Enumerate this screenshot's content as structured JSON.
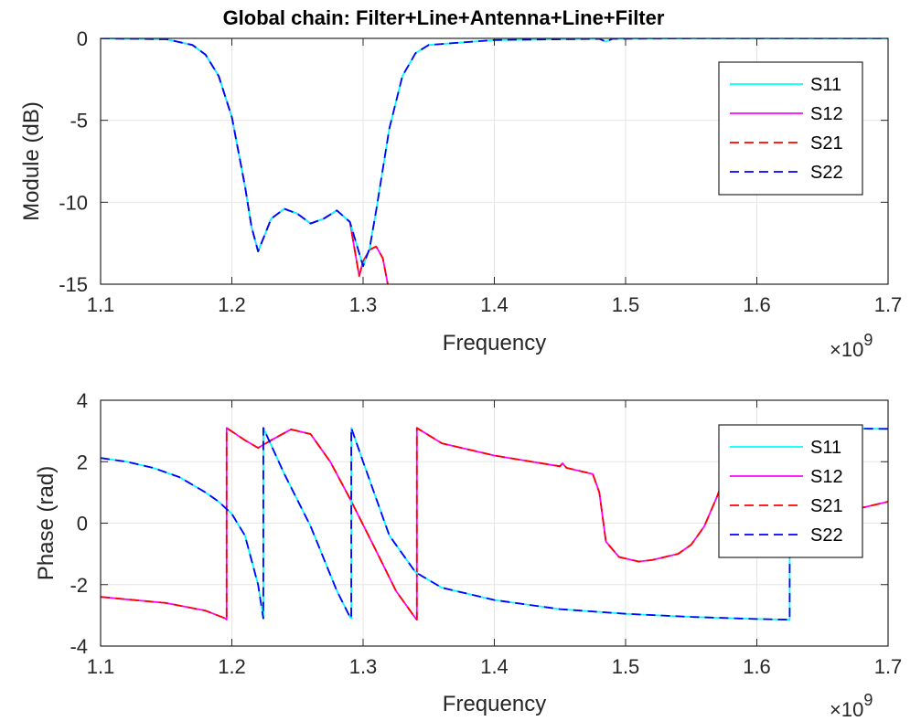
{
  "chart_data": [
    {
      "type": "line",
      "title": "Global chain: Filter+Line+Antenna+Line+Filter",
      "xlabel": "Frequency",
      "ylabel": "Module (dB)",
      "x_exponent": "×10^9",
      "xlim": [
        1100000000.0,
        1700000000.0
      ],
      "ylim": [
        -15,
        0
      ],
      "xticks": [
        1.1,
        1.2,
        1.3,
        1.4,
        1.5,
        1.6,
        1.7
      ],
      "xtick_labels": [
        "1.1",
        "1.2",
        "1.3",
        "1.4",
        "1.5",
        "1.6",
        "1.7"
      ],
      "yticks": [
        -15,
        -10,
        -5,
        0
      ],
      "ytick_labels": [
        "-15",
        "-10",
        "-5",
        "0"
      ],
      "x_scale": 1000000000.0,
      "grid": true,
      "legend_position": "top-right",
      "series": [
        {
          "name": "S11",
          "color": "#00ffff",
          "style": "solid",
          "x": [
            1.1,
            1.15,
            1.17,
            1.18,
            1.19,
            1.2,
            1.21,
            1.215,
            1.22,
            1.225,
            1.23,
            1.24,
            1.25,
            1.26,
            1.27,
            1.28,
            1.29,
            1.3,
            1.305,
            1.31,
            1.315,
            1.32,
            1.33,
            1.34,
            1.35,
            1.4,
            1.48,
            1.485,
            1.49,
            1.55,
            1.6,
            1.7
          ],
          "y": [
            0,
            -0.05,
            -0.4,
            -1.0,
            -2.3,
            -4.8,
            -9.0,
            -11.5,
            -13.0,
            -12.0,
            -11.0,
            -10.4,
            -10.7,
            -11.3,
            -11.0,
            -10.5,
            -11.2,
            -13.9,
            -12.8,
            -10.5,
            -8.0,
            -5.5,
            -2.3,
            -0.9,
            -0.4,
            -0.1,
            -0.03,
            -0.2,
            -0.03,
            0,
            0,
            0
          ]
        },
        {
          "name": "S12",
          "color": "#ff00ff",
          "style": "solid",
          "x": [
            1.1,
            1.15,
            1.17,
            1.18,
            1.19,
            1.2,
            1.21,
            1.215,
            1.22,
            1.225,
            1.23,
            1.24,
            1.25,
            1.26,
            1.27,
            1.28,
            1.29,
            1.297,
            1.3,
            1.305,
            1.31,
            1.315,
            1.32
          ],
          "y": [
            0,
            -0.05,
            -0.4,
            -1.0,
            -2.3,
            -4.8,
            -9.0,
            -11.5,
            -13.0,
            -12.0,
            -11.0,
            -10.4,
            -10.7,
            -11.3,
            -11.0,
            -10.5,
            -11.2,
            -14.5,
            -13.6,
            -12.9,
            -12.7,
            -13.4,
            -15.5
          ]
        },
        {
          "name": "S21",
          "color": "#ff0000",
          "style": "dashed",
          "x": [
            1.1,
            1.15,
            1.17,
            1.18,
            1.19,
            1.2,
            1.21,
            1.215,
            1.22,
            1.225,
            1.23,
            1.24,
            1.25,
            1.26,
            1.27,
            1.28,
            1.29,
            1.297,
            1.3,
            1.305,
            1.31,
            1.315,
            1.32
          ],
          "y": [
            0,
            -0.05,
            -0.4,
            -1.0,
            -2.3,
            -4.8,
            -9.0,
            -11.5,
            -13.0,
            -12.0,
            -11.0,
            -10.4,
            -10.7,
            -11.3,
            -11.0,
            -10.5,
            -11.2,
            -14.5,
            -13.6,
            -12.9,
            -12.7,
            -13.4,
            -15.5
          ]
        },
        {
          "name": "S22",
          "color": "#0000ff",
          "style": "dashed",
          "x": [
            1.1,
            1.15,
            1.17,
            1.18,
            1.19,
            1.2,
            1.21,
            1.215,
            1.22,
            1.225,
            1.23,
            1.24,
            1.25,
            1.26,
            1.27,
            1.28,
            1.29,
            1.3,
            1.305,
            1.31,
            1.315,
            1.32,
            1.33,
            1.34,
            1.35,
            1.4,
            1.48,
            1.485,
            1.49,
            1.55,
            1.6,
            1.7
          ],
          "y": [
            0,
            -0.05,
            -0.4,
            -1.0,
            -2.3,
            -4.8,
            -9.0,
            -11.5,
            -13.0,
            -12.0,
            -11.0,
            -10.4,
            -10.7,
            -11.3,
            -11.0,
            -10.5,
            -11.2,
            -13.9,
            -12.8,
            -10.5,
            -8.0,
            -5.5,
            -2.3,
            -0.9,
            -0.4,
            -0.1,
            -0.03,
            -0.2,
            -0.03,
            0,
            0,
            0
          ]
        }
      ]
    },
    {
      "type": "line",
      "title": "",
      "xlabel": "Frequency",
      "ylabel": "Phase (rad)",
      "x_exponent": "×10^9",
      "xlim": [
        1100000000.0,
        1700000000.0
      ],
      "ylim": [
        -4,
        4
      ],
      "xticks": [
        1.1,
        1.2,
        1.3,
        1.4,
        1.5,
        1.6,
        1.7
      ],
      "xtick_labels": [
        "1.1",
        "1.2",
        "1.3",
        "1.4",
        "1.5",
        "1.6",
        "1.7"
      ],
      "yticks": [
        -4,
        -2,
        0,
        2,
        4
      ],
      "ytick_labels": [
        "-4",
        "-2",
        "0",
        "2",
        "4"
      ],
      "x_scale": 1000000000.0,
      "grid": true,
      "legend_position": "top-right",
      "series": [
        {
          "name": "S11",
          "color": "#00ffff",
          "style": "solid",
          "x": [
            1.1,
            1.12,
            1.14,
            1.16,
            1.18,
            1.19,
            1.2,
            1.21,
            1.22,
            1.224,
            1.224,
            1.24,
            1.26,
            1.28,
            1.29,
            1.291,
            1.291,
            1.3,
            1.32,
            1.34,
            1.36,
            1.4,
            1.45,
            1.5,
            1.55,
            1.6,
            1.625,
            1.625,
            1.65,
            1.7
          ],
          "y": [
            2.12,
            2.0,
            1.8,
            1.5,
            1.0,
            0.7,
            0.3,
            -0.4,
            -2.0,
            -3.1,
            3.1,
            1.6,
            -0.1,
            -2.2,
            -3.05,
            -3.1,
            3.1,
            2.0,
            -0.4,
            -1.6,
            -2.1,
            -2.5,
            -2.8,
            -2.95,
            -3.05,
            -3.12,
            -3.14,
            3.1,
            3.08,
            3.07
          ]
        },
        {
          "name": "S12",
          "color": "#ff00ff",
          "style": "solid",
          "x": [
            1.1,
            1.15,
            1.18,
            1.195,
            1.196,
            1.196,
            1.21,
            1.22,
            1.23,
            1.245,
            1.26,
            1.275,
            1.29,
            1.31,
            1.325,
            1.34,
            1.341,
            1.341,
            1.36,
            1.4,
            1.45,
            1.452,
            1.455,
            1.475,
            1.48,
            1.485,
            1.495,
            1.505,
            1.51,
            1.52,
            1.54,
            1.55,
            1.56,
            1.57,
            1.575,
            1.58,
            1.59,
            1.6,
            1.65,
            1.7
          ],
          "y": [
            -2.4,
            -2.6,
            -2.85,
            -3.1,
            -3.14,
            3.1,
            2.7,
            2.45,
            2.7,
            3.05,
            2.9,
            2.0,
            0.8,
            -0.9,
            -2.2,
            -3.1,
            -3.14,
            3.1,
            2.6,
            2.2,
            1.85,
            1.95,
            1.8,
            1.6,
            1.0,
            -0.6,
            -1.1,
            -1.2,
            -1.25,
            -1.2,
            -1.0,
            -0.7,
            -0.1,
            0.9,
            1.5,
            2.0,
            2.0,
            1.0,
            0.2,
            0.7
          ]
        },
        {
          "name": "S21",
          "color": "#ff0000",
          "style": "dashed",
          "x": [
            1.1,
            1.15,
            1.18,
            1.195,
            1.196,
            1.196,
            1.21,
            1.22,
            1.23,
            1.245,
            1.26,
            1.275,
            1.29,
            1.31,
            1.325,
            1.34,
            1.341,
            1.341,
            1.36,
            1.4,
            1.45,
            1.452,
            1.455,
            1.475,
            1.48,
            1.485,
            1.495,
            1.505,
            1.51,
            1.52,
            1.54,
            1.55,
            1.56,
            1.57,
            1.575,
            1.58,
            1.59,
            1.6,
            1.65,
            1.7
          ],
          "y": [
            -2.4,
            -2.6,
            -2.85,
            -3.1,
            -3.14,
            3.1,
            2.7,
            2.45,
            2.7,
            3.05,
            2.9,
            2.0,
            0.8,
            -0.9,
            -2.2,
            -3.1,
            -3.14,
            3.1,
            2.6,
            2.2,
            1.85,
            1.95,
            1.8,
            1.6,
            1.0,
            -0.6,
            -1.1,
            -1.2,
            -1.25,
            -1.2,
            -1.0,
            -0.7,
            -0.1,
            0.9,
            1.5,
            2.0,
            2.0,
            1.0,
            0.2,
            0.7
          ]
        },
        {
          "name": "S22",
          "color": "#0000ff",
          "style": "dashed",
          "x": [
            1.1,
            1.12,
            1.14,
            1.16,
            1.18,
            1.19,
            1.2,
            1.21,
            1.22,
            1.224,
            1.224,
            1.24,
            1.26,
            1.28,
            1.29,
            1.291,
            1.291,
            1.3,
            1.32,
            1.34,
            1.36,
            1.4,
            1.45,
            1.5,
            1.55,
            1.6,
            1.625,
            1.625,
            1.65,
            1.7
          ],
          "y": [
            2.12,
            2.0,
            1.8,
            1.5,
            1.0,
            0.7,
            0.3,
            -0.4,
            -2.0,
            -3.1,
            3.1,
            1.6,
            -0.1,
            -2.2,
            -3.05,
            -3.1,
            3.1,
            2.0,
            -0.4,
            -1.6,
            -2.1,
            -2.5,
            -2.8,
            -2.95,
            -3.05,
            -3.12,
            -3.14,
            3.1,
            3.08,
            3.07
          ]
        }
      ]
    }
  ]
}
